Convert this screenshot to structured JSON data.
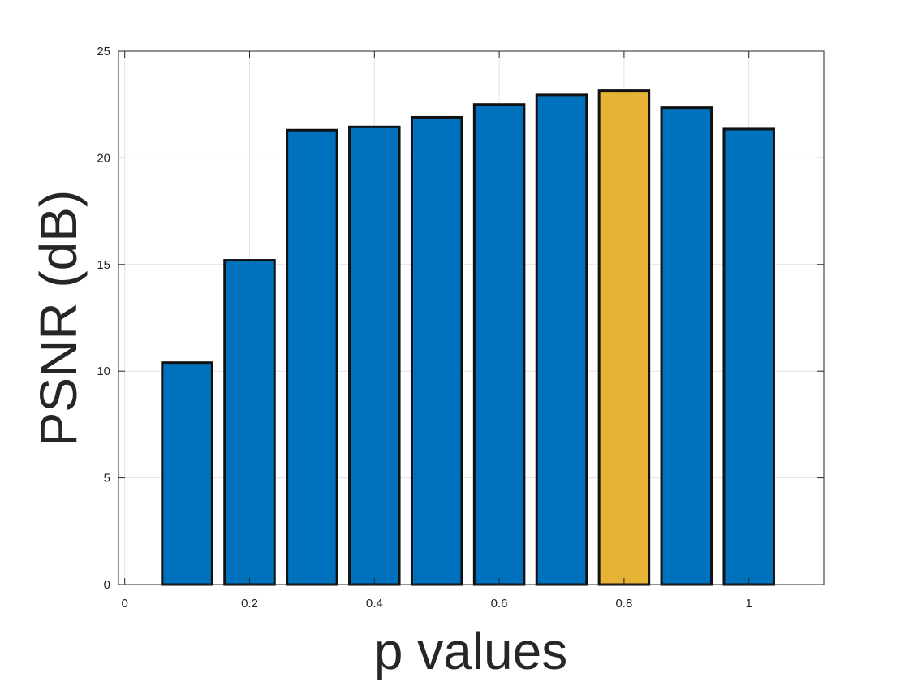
{
  "chart_data": {
    "type": "bar",
    "title": "",
    "xlabel": "p values",
    "ylabel": "PSNR (dB)",
    "x": [
      0.1,
      0.2,
      0.3,
      0.4,
      0.5,
      0.6,
      0.7,
      0.8,
      0.9,
      1.0
    ],
    "values": [
      10.4,
      15.2,
      21.3,
      21.45,
      21.9,
      22.5,
      22.95,
      23.15,
      22.35,
      21.35
    ],
    "highlight_index": 7,
    "xlim": [
      -0.01,
      1.12
    ],
    "ylim": [
      0,
      25
    ],
    "xticks": [
      0,
      0.2,
      0.4,
      0.6,
      0.8,
      1
    ],
    "xtick_labels": [
      "0",
      "0.2",
      "0.4",
      "0.6",
      "0.8",
      "1"
    ],
    "yticks": [
      0,
      5,
      10,
      15,
      20,
      25
    ],
    "ytick_labels": [
      "0",
      "5",
      "10",
      "15",
      "20",
      "25"
    ],
    "grid": true,
    "colors": {
      "bar": "#0072BD",
      "highlight": "#E6B336",
      "bar_edge": "#111111",
      "grid": "#e3e3e3",
      "axis": "#262626"
    }
  }
}
